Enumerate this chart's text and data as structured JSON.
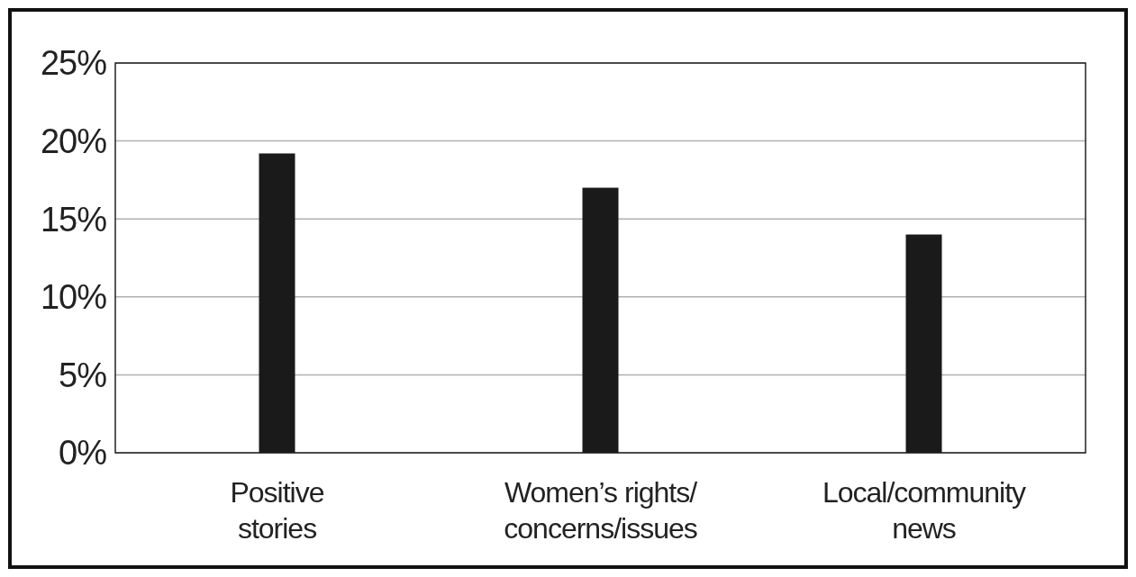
{
  "chart_data": {
    "type": "bar",
    "categories": [
      "Positive\nstories",
      "Women’s rights/\nconcerns/issues",
      "Local/community\nnews"
    ],
    "values": [
      19.2,
      17.0,
      14.0
    ],
    "color": "#1a1a1a",
    "ylim": [
      0,
      25
    ],
    "yticks": [
      {
        "value": 0,
        "label": "0%"
      },
      {
        "value": 5,
        "label": "5%"
      },
      {
        "value": 10,
        "label": "10%"
      },
      {
        "value": 15,
        "label": "15%"
      },
      {
        "value": 20,
        "label": "20%"
      },
      {
        "value": 25,
        "label": "25%"
      }
    ],
    "grid": "y"
  }
}
